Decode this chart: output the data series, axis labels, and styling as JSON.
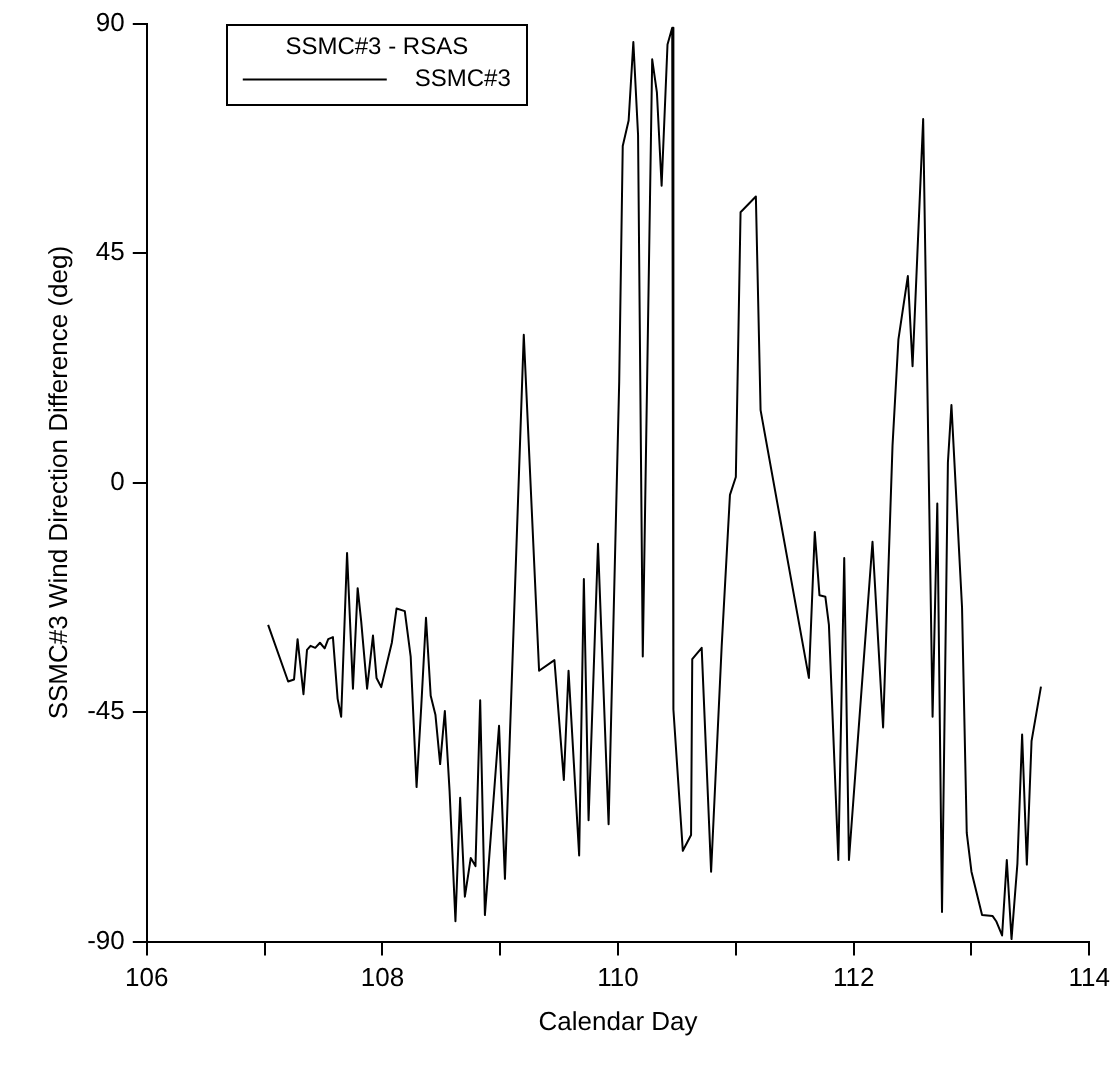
{
  "chart_data": {
    "type": "line",
    "xlabel": "Calendar Day",
    "ylabel": "SSMC#3 Wind Direction Difference (deg)",
    "legend_title": "SSMC#3 - RSAS",
    "legend": "top left",
    "grid": false,
    "marker": "none",
    "line_style": "solid",
    "xlim": [
      106,
      114
    ],
    "xticks": [
      106,
      {
        "value": 107,
        "label": null
      },
      108,
      {
        "value": 109,
        "label": null
      },
      110,
      {
        "value": 111,
        "label": null
      },
      112,
      {
        "value": 113,
        "label": null
      },
      114
    ],
    "ylim": [
      -90,
      90
    ],
    "yticks": [
      -90,
      -45,
      0,
      45,
      90
    ],
    "x": [
      107.03,
      107.2,
      107.25,
      107.28,
      107.33,
      107.36,
      107.39,
      107.43,
      107.47,
      107.51,
      107.54,
      107.58,
      107.62,
      107.65,
      107.7,
      107.75,
      107.79,
      107.82,
      107.87,
      107.92,
      107.95,
      107.99,
      108.08,
      108.12,
      108.19,
      108.24,
      108.29,
      108.33,
      108.37,
      108.41,
      108.45,
      108.49,
      108.53,
      108.57,
      108.62,
      108.66,
      108.7,
      108.75,
      108.79,
      108.83,
      108.87,
      108.99,
      109.04,
      109.2,
      109.33,
      109.46,
      109.54,
      109.58,
      109.67,
      109.71,
      109.75,
      109.83,
      109.92,
      110.01,
      110.04,
      110.09,
      110.13,
      110.17,
      110.21,
      110.29,
      110.33,
      110.37,
      110.42,
      110.46,
      110.47,
      110.55,
      110.62,
      110.63,
      110.71,
      110.79,
      110.88,
      110.95,
      111,
      111.04,
      111.17,
      111.21,
      111.62,
      111.67,
      111.71,
      111.76,
      111.79,
      111.87,
      111.92,
      111.96,
      112.16,
      112.25,
      112.33,
      112.38,
      112.46,
      112.5,
      112.59,
      112.67,
      112.71,
      112.75,
      112.8,
      112.83,
      112.92,
      112.96,
      113,
      113.09,
      113.18,
      113.21,
      113.26,
      113.3,
      113.34,
      113.39,
      113.43,
      113.47,
      113.51,
      113.59
    ],
    "series": [
      {
        "name": "SSMC#3",
        "color": "#000000",
        "values": [
          -27.9,
          -39,
          -38.6,
          -30.7,
          -41.5,
          -32.8,
          -32,
          -32.4,
          -31.4,
          -32.5,
          -30.7,
          -30.3,
          -42.4,
          -45.9,
          -13.8,
          -40.4,
          -20.7,
          -27.2,
          -40.4,
          -30,
          -38.3,
          -40.1,
          -31.4,
          -24.7,
          -25.2,
          -34.1,
          -59.7,
          -43.8,
          -26.5,
          -41.8,
          -45.5,
          -55.2,
          -44.8,
          -60.4,
          -86,
          -61.8,
          -81.2,
          -73.6,
          -75.2,
          -42.7,
          -84.8,
          -47.7,
          -77.7,
          29,
          -36.9,
          -34.8,
          -58.3,
          -36.9,
          -73.1,
          -18.9,
          -66.2,
          -12,
          -67,
          19.8,
          66,
          71,
          86.4,
          68.2,
          -34.1,
          83,
          76.5,
          58.2,
          85.9,
          89.2,
          -44.5,
          -72.2,
          -69.1,
          -34.6,
          -32.4,
          -76.3,
          -32,
          -2.4,
          1.1,
          53,
          56.1,
          14.2,
          -38.3,
          -9.7,
          -22.1,
          -22.4,
          -27.9,
          -74,
          -14.8,
          -74,
          -11.6,
          -48,
          7.3,
          28.1,
          40.5,
          22.8,
          71.3,
          -45.9,
          -4.1,
          -84.2,
          3.9,
          15.2,
          -24.5,
          -68.7,
          -76.3,
          -84.8,
          -85,
          -86,
          -88.8,
          -74,
          -89.5,
          -74.7,
          -49.4,
          -74.9,
          -50.7,
          -40
        ]
      }
    ]
  }
}
